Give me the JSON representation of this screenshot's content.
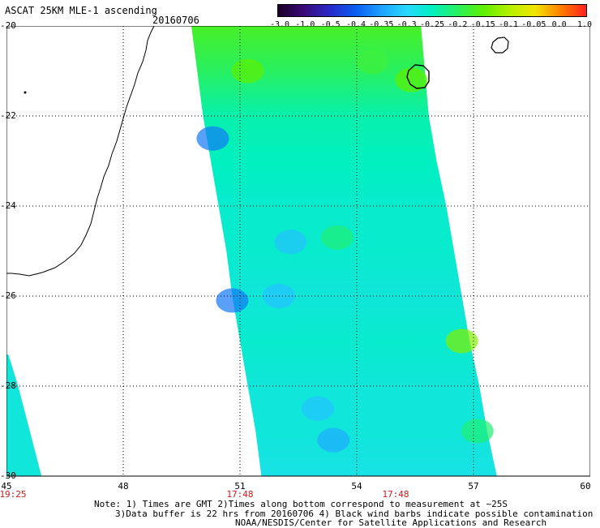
{
  "header": {
    "title": "ASCAT 25KM MLE-1 ascending",
    "date": "20160706"
  },
  "colorbar": {
    "ticks": [
      "-3.0",
      "-1.0",
      "-0.5",
      "-0.4",
      "-0.35",
      "-0.3",
      "-0.25",
      "-0.2",
      "-0.15",
      "-0.1",
      "-0.05",
      "0.0",
      "1.0"
    ],
    "colors": [
      "#1a0026",
      "#3a0a78",
      "#2a28c8",
      "#0a5cf0",
      "#1ea0ff",
      "#28d8ff",
      "#00f0c0",
      "#28f060",
      "#5ef000",
      "#b4f000",
      "#f0e600",
      "#ff8000",
      "#ff2020"
    ]
  },
  "chart_data": {
    "type": "heatmap",
    "title": "ASCAT 25KM MLE-1 ascending",
    "x_axis": {
      "ticks": [
        "45",
        "48",
        "51",
        "54",
        "57",
        "60"
      ],
      "range": [
        45,
        60
      ]
    },
    "y_axis": {
      "ticks": [
        "-20",
        "-22",
        "-24",
        "-26",
        "-28",
        "-30"
      ],
      "range": [
        -30,
        -20
      ]
    },
    "time_labels": [
      {
        "lon": 45,
        "text": "19:25"
      },
      {
        "lon": 51,
        "text": "17:48"
      },
      {
        "lon": 55,
        "text": "17:48"
      }
    ],
    "swaths": [
      {
        "rows": [
          {
            "lat": -20.0,
            "west": 49.75,
            "east": 55.65,
            "value": -0.17
          },
          {
            "lat": -21.0,
            "west": 49.9,
            "east": 55.75,
            "value": -0.2
          },
          {
            "lat": -22.0,
            "west": 50.05,
            "east": 55.85,
            "value": -0.24
          },
          {
            "lat": -23.0,
            "west": 50.25,
            "east": 56.05,
            "value": -0.25
          },
          {
            "lat": -24.0,
            "west": 50.45,
            "east": 56.3,
            "value": -0.26
          },
          {
            "lat": -25.0,
            "west": 50.65,
            "east": 56.5,
            "value": -0.26
          },
          {
            "lat": -26.0,
            "west": 50.8,
            "east": 56.7,
            "value": -0.27
          },
          {
            "lat": -27.0,
            "west": 51.0,
            "east": 56.9,
            "value": -0.26
          },
          {
            "lat": -28.0,
            "west": 51.2,
            "east": 57.15,
            "value": -0.27
          },
          {
            "lat": -29.0,
            "west": 51.4,
            "east": 57.35,
            "value": -0.27
          },
          {
            "lat": -30.0,
            "west": 51.55,
            "east": 57.6,
            "value": -0.28
          }
        ]
      },
      {
        "rows": [
          {
            "lat": -27.3,
            "west": 45.0,
            "east": 45.05,
            "value": -0.27
          },
          {
            "lat": -28.0,
            "west": 45.0,
            "east": 45.3,
            "value": -0.27
          },
          {
            "lat": -29.0,
            "west": 45.0,
            "east": 45.6,
            "value": -0.27
          },
          {
            "lat": -30.0,
            "west": 45.0,
            "east": 45.9,
            "value": -0.27
          }
        ]
      }
    ],
    "highlights": [
      {
        "lon": 51.2,
        "lat": -21.0,
        "value": -0.15
      },
      {
        "lon": 54.4,
        "lat": -20.8,
        "value": -0.18
      },
      {
        "lon": 55.4,
        "lat": -21.2,
        "value": -0.15
      },
      {
        "lon": 53.5,
        "lat": -24.7,
        "value": -0.21
      },
      {
        "lon": 56.7,
        "lat": -27.0,
        "value": -0.13
      },
      {
        "lon": 57.1,
        "lat": -29.0,
        "value": -0.21
      },
      {
        "lon": 52.3,
        "lat": -24.8,
        "value": -0.32
      },
      {
        "lon": 52.0,
        "lat": -26.0,
        "value": -0.32
      },
      {
        "lon": 53.4,
        "lat": -29.2,
        "value": -0.34
      },
      {
        "lon": 53.0,
        "lat": -28.5,
        "value": -0.32
      },
      {
        "lon": 50.3,
        "lat": -22.5,
        "value": -0.38
      },
      {
        "lon": 50.8,
        "lat": -26.1,
        "value": -0.38
      }
    ]
  },
  "notes": [
    "Note: 1) Times are GMT 2)Times along bottom correspond to measurement at ~25S",
    "3)Data buffer is 22 hrs from 20160706 4) Black wind barbs indicate possible contamination",
    "NOAA/NESDIS/Center for Satellite Applications and Research"
  ]
}
